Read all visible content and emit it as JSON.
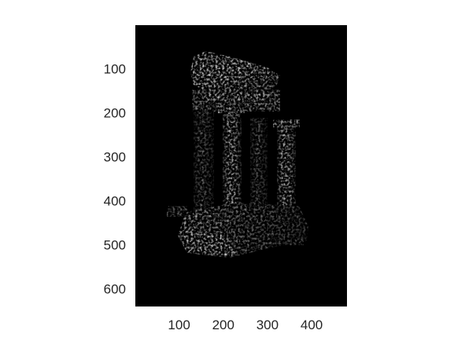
{
  "chart_data": {
    "type": "heatmap",
    "title": "",
    "xlabel": "",
    "ylabel": "",
    "xlim": [
      1,
      480
    ],
    "ylim": [
      1,
      640
    ],
    "y_reversed": true,
    "colormap": "gray",
    "background_color": "#000000",
    "image_subject": "temple",
    "xticks": [
      100,
      200,
      300,
      400
    ],
    "yticks": [
      100,
      200,
      300,
      400,
      500,
      600
    ],
    "xtick_labels": [
      "100",
      "200",
      "300",
      "400"
    ],
    "ytick_labels": [
      "100",
      "200",
      "300",
      "400",
      "500",
      "600"
    ]
  }
}
